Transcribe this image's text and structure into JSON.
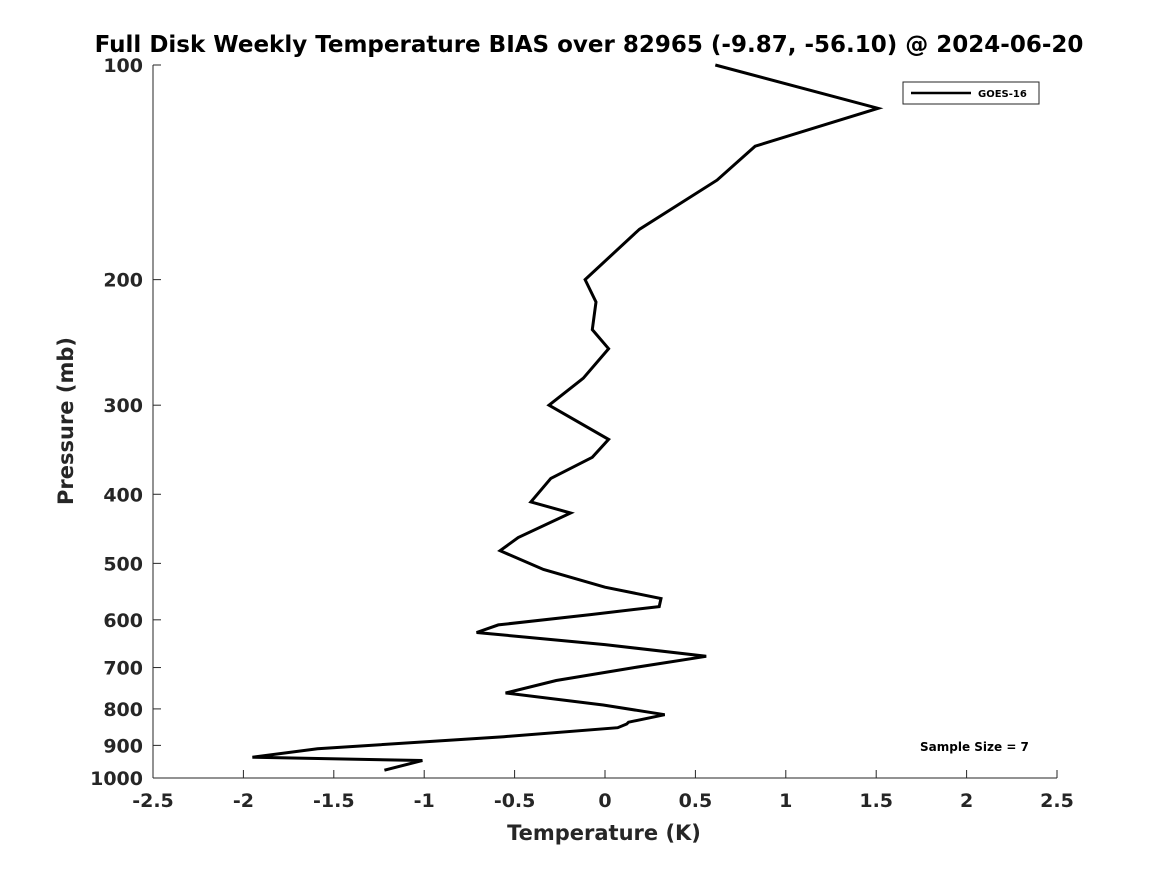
{
  "chart_data": {
    "type": "line",
    "title": "Full Disk Weekly Temperature BIAS over 82965 (-9.87, -56.10) @ 2024-06-20",
    "xlabel": "Temperature (K)",
    "ylabel": "Pressure (mb)",
    "xlim": [
      -2.5,
      2.5
    ],
    "ylim": [
      100,
      1000
    ],
    "y_scale": "log",
    "y_reversed": true,
    "x_ticks": [
      "-2.5",
      "-2",
      "-1.5",
      "-1",
      "-0.5",
      "0",
      "0.5",
      "1",
      "1.5",
      "2",
      "2.5"
    ],
    "y_ticks": [
      "100",
      "200",
      "300",
      "400",
      "500",
      "600",
      "700",
      "800",
      "900",
      "1000"
    ],
    "grid": false,
    "legend_position": "top-right",
    "series": [
      {
        "name": "GOES-16",
        "color": "#000000",
        "x": [
          0.61,
          1.51,
          0.83,
          0.62,
          0.19,
          -0.11,
          -0.05,
          -0.07,
          0.02,
          -0.12,
          -0.31,
          0.02,
          -0.07,
          -0.3,
          -0.41,
          -0.19,
          -0.48,
          -0.58,
          -0.34,
          0.0,
          0.31,
          0.3,
          -0.08,
          -0.59,
          -0.71,
          0.0,
          0.56,
          0.16,
          -0.27,
          -0.55,
          -0.01,
          0.33,
          0.13,
          0.12,
          0.07,
          -0.56,
          -1.59,
          -1.95,
          -1.01,
          -1.22
        ],
        "y": [
          100,
          115,
          130,
          145,
          170,
          200,
          215,
          235,
          250,
          275,
          300,
          335,
          355,
          380,
          410,
          425,
          460,
          480,
          510,
          540,
          560,
          575,
          590,
          610,
          625,
          650,
          675,
          700,
          730,
          760,
          790,
          815,
          835,
          840,
          850,
          875,
          910,
          935,
          945,
          975
        ]
      }
    ],
    "annotations": [
      "Sample Size = 7"
    ]
  }
}
